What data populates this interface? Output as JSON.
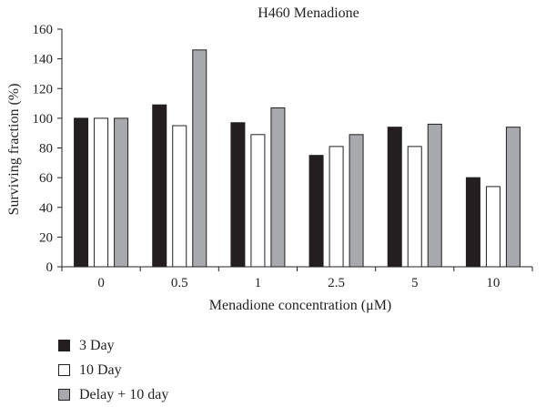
{
  "chart_data": {
    "type": "bar",
    "title": "H460 Menadione",
    "xlabel": "Menadione concentration (μM)",
    "ylabel": "Surviving fraction (%)",
    "categories": [
      "0",
      "0.5",
      "1",
      "2.5",
      "5",
      "10"
    ],
    "ylim": [
      0,
      160
    ],
    "yticks": [
      0,
      20,
      40,
      60,
      80,
      100,
      120,
      140,
      160
    ],
    "grid": false,
    "legend_position": "bottom-left",
    "series": [
      {
        "name": "3 Day",
        "color": "#231f20",
        "values": [
          100,
          109,
          97,
          75,
          94,
          60
        ]
      },
      {
        "name": "10 Day",
        "color": "#ffffff",
        "values": [
          100,
          95,
          89,
          81,
          81,
          54
        ]
      },
      {
        "name": "Delay + 10 day",
        "color": "#a7a9ac",
        "values": [
          100,
          146,
          107,
          89,
          96,
          94
        ]
      }
    ]
  }
}
